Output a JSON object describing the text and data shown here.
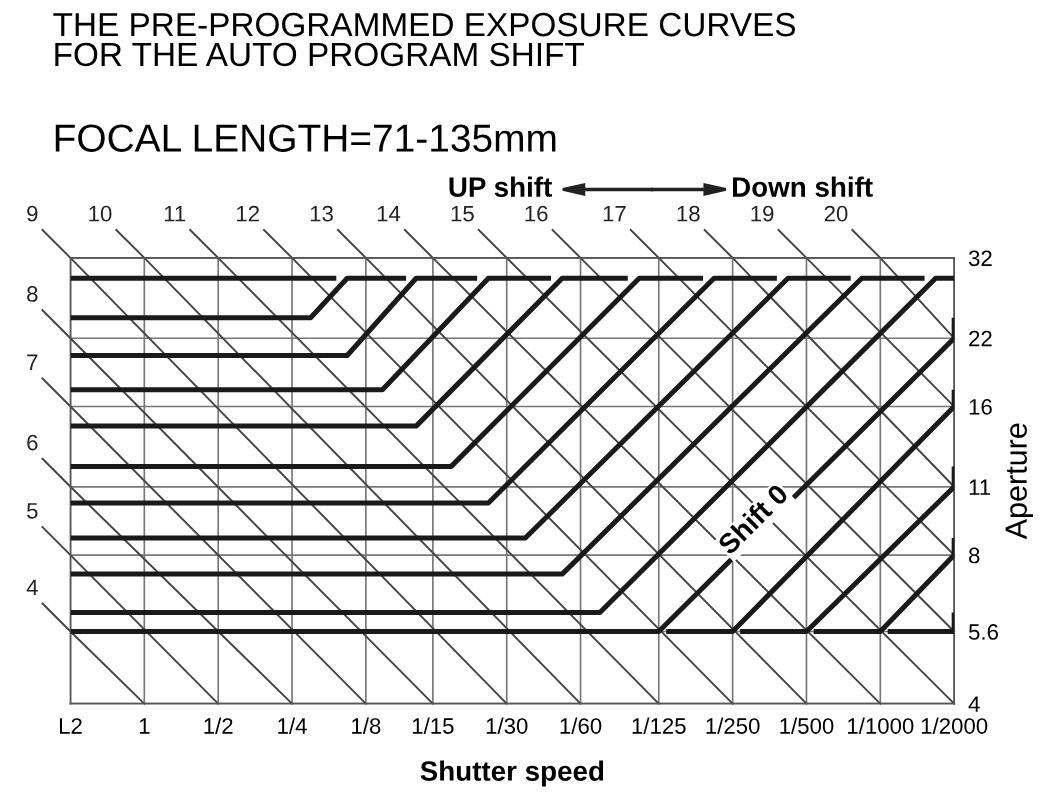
{
  "chart_data": {
    "type": "line",
    "title": "THE PRE-PROGRAMMED EXPOSURE CURVES\nFOR THE AUTO PROGRAM SHIFT",
    "subtitle": "FOCAL LENGTH=71-135mm",
    "xlabel": "Shutter speed",
    "ylabel": "Aperture",
    "annotations": [
      "UP shift",
      "Down shift",
      {
        "text": "Shift 0",
        "x": 0.00325,
        "y": 9.38
      }
    ],
    "log": "xy",
    "xlim": [
      2,
      0.0005
    ],
    "ylim": [
      4,
      32
    ],
    "xticks": [
      {
        "value": 2,
        "label": "L2"
      },
      1,
      {
        "value": 0.5,
        "label": "1/2"
      },
      {
        "value": 0.25,
        "label": "1/4"
      },
      {
        "value": 0.125,
        "label": "1/8"
      },
      {
        "value": 0.06667,
        "label": "1/15"
      },
      {
        "value": 0.03333,
        "label": "1/30"
      },
      {
        "value": 0.01667,
        "label": "1/60"
      },
      {
        "value": 0.008,
        "label": "1/125"
      },
      {
        "value": 0.004,
        "label": "1/250"
      },
      {
        "value": 0.002,
        "label": "1/500"
      },
      {
        "value": 0.001,
        "label": "1/1000"
      },
      {
        "value": 0.0005,
        "label": "1/2000"
      }
    ],
    "yticks": [
      4,
      5.6,
      8,
      11,
      16,
      22,
      32
    ],
    "grid": true,
    "legend": false,
    "marker": "none",
    "line_style": "solid",
    "series": [
      {
        "name": "4",
        "color": "#444444",
        "x": [
          2,
          1
        ],
        "values": [
          5.6,
          4
        ]
      },
      {
        "name": "5",
        "color": "#444444",
        "x": [
          2,
          0.5
        ],
        "values": [
          8,
          4
        ]
      },
      {
        "name": "6",
        "color": "#444444",
        "x": [
          2,
          0.25
        ],
        "values": [
          11,
          4
        ]
      },
      {
        "name": "7",
        "color": "#444444",
        "x": [
          2,
          0.125
        ],
        "values": [
          16,
          4
        ]
      },
      {
        "name": "8",
        "color": "#444444",
        "x": [
          2,
          0.06667
        ],
        "values": [
          22,
          4
        ]
      },
      {
        "name": "9",
        "color": "#444444",
        "x": [
          2,
          0.03333
        ],
        "values": [
          32,
          4
        ]
      },
      {
        "name": "10",
        "color": "#444444",
        "x": [
          1,
          0.01667
        ],
        "values": [
          32,
          4
        ]
      },
      {
        "name": "11",
        "color": "#444444",
        "x": [
          0.5,
          0.008
        ],
        "values": [
          32,
          4
        ]
      },
      {
        "name": "12",
        "color": "#444444",
        "x": [
          0.25,
          0.004
        ],
        "values": [
          32,
          4
        ]
      },
      {
        "name": "13",
        "color": "#444444",
        "x": [
          0.125,
          0.002
        ],
        "values": [
          32,
          4
        ]
      },
      {
        "name": "14",
        "color": "#444444",
        "x": [
          0.06667,
          0.001
        ],
        "values": [
          32,
          4
        ]
      },
      {
        "name": "15",
        "color": "#444444",
        "x": [
          0.03333,
          0.0005
        ],
        "values": [
          32,
          4
        ]
      },
      {
        "name": "16",
        "color": "#444444",
        "x": [
          0.01667,
          0.0005
        ],
        "values": [
          32,
          5.6
        ]
      },
      {
        "name": "17",
        "color": "#444444",
        "x": [
          0.008,
          0.0005
        ],
        "values": [
          32,
          8
        ]
      },
      {
        "name": "18",
        "color": "#444444",
        "x": [
          0.004,
          0.0005
        ],
        "values": [
          32,
          11
        ]
      },
      {
        "name": "19",
        "color": "#444444",
        "x": [
          0.002,
          0.0005
        ],
        "values": [
          32,
          16
        ]
      },
      {
        "name": "20",
        "color": "#444444",
        "x": [
          0.001,
          0.0005
        ],
        "values": [
          32,
          22
        ]
      },
      {
        "color": "#1a1a1a",
        "x": [
          2,
          0.165
        ],
        "values": [
          29.1,
          29.1
        ]
      },
      {
        "color": "#1a1a1a",
        "x": [
          2,
          0.21,
          0.149,
          0.0857
        ],
        "values": [
          24.2,
          24.2,
          29.1,
          29.1
        ]
      },
      {
        "color": "#1a1a1a",
        "x": [
          2,
          0.149,
          0.078,
          0.044
        ],
        "values": [
          20.3,
          20.3,
          29.1,
          29.1
        ]
      },
      {
        "color": "#1a1a1a",
        "x": [
          2,
          0.107,
          0.0396,
          0.022
        ],
        "values": [
          17.3,
          17.3,
          29.1,
          29.1
        ]
      },
      {
        "color": "#1a1a1a",
        "x": [
          2,
          0.078,
          0.0198,
          0.0107
        ],
        "values": [
          14.6,
          14.6,
          29.1,
          29.1
        ]
      },
      {
        "color": "#1a1a1a",
        "x": [
          2,
          0.0561,
          0.00961,
          0.00528
        ],
        "values": [
          12.1,
          12.1,
          29.1,
          29.1
        ]
      },
      {
        "color": "#1a1a1a",
        "x": [
          2,
          0.0396,
          0.00476,
          0.00264
        ],
        "values": [
          10.2,
          10.2,
          29.1,
          29.1
        ]
      },
      {
        "color": "#1a1a1a",
        "x": [
          2,
          0.028,
          0.00238,
          0.00132
        ],
        "values": [
          8.66,
          8.66,
          29.1,
          29.1
        ]
      },
      {
        "color": "#1a1a1a",
        "x": [
          2,
          0.0198,
          0.00119,
          0.00066
        ],
        "values": [
          7.32,
          7.32,
          29.1,
          29.1
        ]
      },
      {
        "color": "#1a1a1a",
        "x": [
          2,
          0.0139,
          0.000595,
          0.0005
        ],
        "values": [
          6.12,
          6.12,
          29.1,
          29.1
        ]
      },
      {
        "color": "#1a1a1a",
        "x": [
          2,
          0.008,
          0.0005,
          0.0005
        ],
        "values": [
          5.6,
          5.6,
          22,
          24.2
        ]
      },
      {
        "color": "#1a1a1a",
        "x": [
          0.00746,
          0.004,
          0.0005,
          0.0005
        ],
        "values": [
          5.6,
          5.6,
          16,
          17.3
        ]
      },
      {
        "color": "#1a1a1a",
        "x": [
          0.00373,
          0.002,
          0.0005,
          0.0005
        ],
        "values": [
          5.6,
          5.6,
          11,
          12.1
        ]
      },
      {
        "color": "#1a1a1a",
        "x": [
          0.00187,
          0.001,
          0.0005,
          0.0005
        ],
        "values": [
          5.6,
          5.6,
          8,
          8.66
        ]
      },
      {
        "color": "#1a1a1a",
        "x": [
          0.000933,
          0.0005,
          0.0005
        ],
        "values": [
          5.6,
          5.6,
          6.12
        ]
      }
    ]
  }
}
